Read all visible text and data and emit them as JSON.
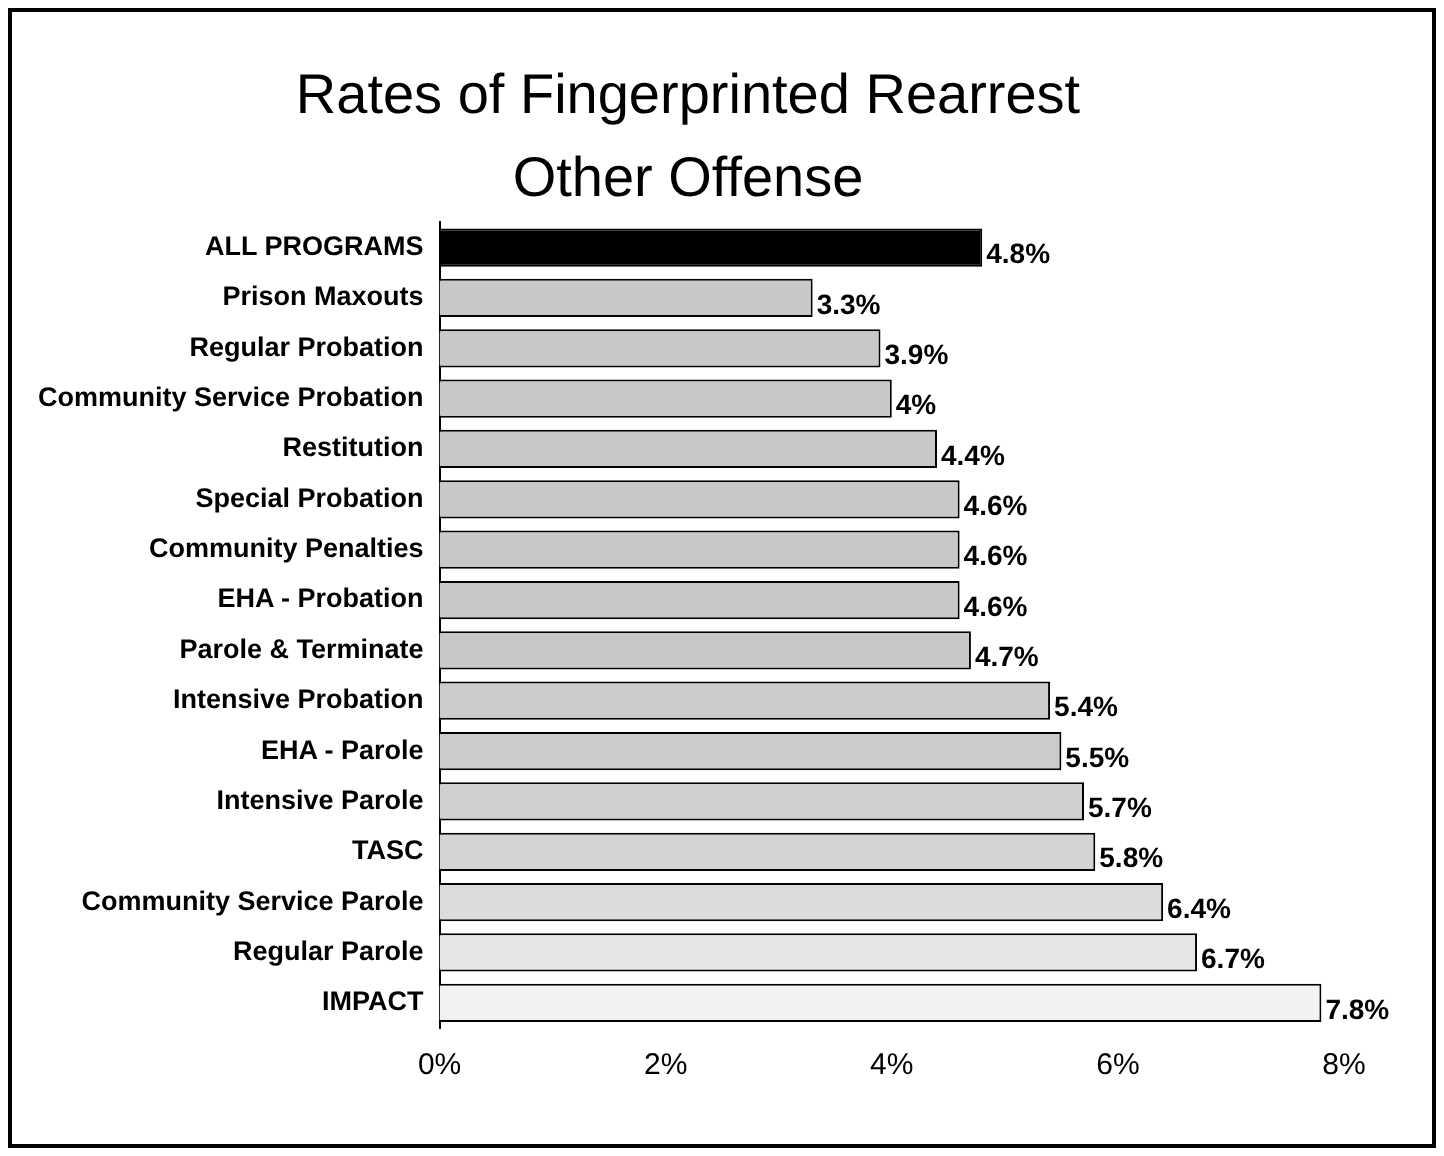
{
  "chart_data": {
    "type": "bar",
    "orientation": "horizontal",
    "title": "Rates of Fingerprinted Rearrest",
    "subtitle": "Other Offense",
    "categories": [
      "ALL PROGRAMS",
      "Prison Maxouts",
      "Regular Probation",
      "Community Service Probation",
      "Restitution",
      "Special Probation",
      "Community Penalties",
      "EHA - Probation",
      "Parole & Terminate",
      "Intensive Probation",
      "EHA - Parole",
      "Intensive Parole",
      "TASC",
      "Community Service Parole",
      "Regular Parole",
      "IMPACT"
    ],
    "values": [
      4.8,
      3.3,
      3.9,
      4.0,
      4.4,
      4.6,
      4.6,
      4.6,
      4.7,
      5.4,
      5.5,
      5.7,
      5.8,
      6.4,
      6.7,
      7.8
    ],
    "value_labels": [
      "4.8%",
      "3.3%",
      "3.9%",
      "4%",
      "4.4%",
      "4.6%",
      "4.6%",
      "4.6%",
      "4.7%",
      "5.4%",
      "5.5%",
      "5.7%",
      "5.8%",
      "6.4%",
      "6.7%",
      "7.8%"
    ],
    "colors": [
      "#000000",
      "#c8c8c8",
      "#c8c8c8",
      "#c8c8c8",
      "#c8c8c8",
      "#c8c8c8",
      "#c8c8c8",
      "#c8c8c8",
      "#c8c8c8",
      "#cccccc",
      "#cccccc",
      "#d0d0d0",
      "#d4d4d4",
      "#dcdcdc",
      "#e6e6e6",
      "#f2f2f2"
    ],
    "xlim": [
      0,
      8
    ],
    "xticks": [
      {
        "value": 0,
        "label": "0%"
      },
      {
        "value": 2,
        "label": "2%"
      },
      {
        "value": 4,
        "label": "4%"
      },
      {
        "value": 6,
        "label": "6%"
      },
      {
        "value": 8,
        "label": "8%"
      }
    ],
    "grid": false,
    "legend": false
  }
}
